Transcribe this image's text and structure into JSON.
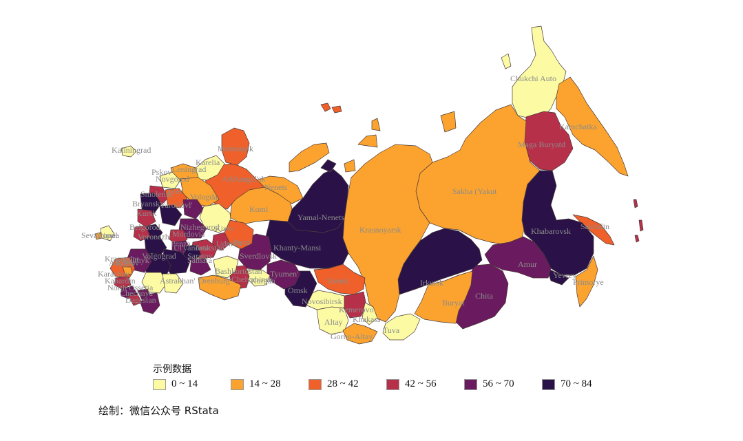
{
  "colors": {
    "c1": "#fcfba4",
    "c2": "#fba32e",
    "c3": "#f0602a",
    "c4": "#b7304a",
    "c5": "#6a1a5e",
    "c6": "#2a1248"
  },
  "legend": {
    "title": "示例数据",
    "items": [
      {
        "label": "0 ~ 14",
        "color": "#fcfba4"
      },
      {
        "label": "14 ~ 28",
        "color": "#fba32e"
      },
      {
        "label": "28 ~ 42",
        "color": "#f0602a"
      },
      {
        "label": "42 ~ 56",
        "color": "#b7304a"
      },
      {
        "label": "56 ~ 70",
        "color": "#6a1a5e"
      },
      {
        "label": "70 ~ 84",
        "color": "#2a1248"
      }
    ]
  },
  "caption": "绘制：微信公众号 RStata",
  "region_labels": [
    "Chukchi Auto",
    "Kamchatka",
    "Maga Buryatd",
    "Sakha (Yakut",
    "Sakhalin",
    "Khabarovsk",
    "Amur",
    "Yevrey",
    "Primorye",
    "Chita",
    "Buryat",
    "Irkutsk",
    "Tuva",
    "Krasnoyarsk",
    "Yamal-Nenets",
    "Khanty-Mansi",
    "Tomsk",
    "Kemerovo",
    "Khakass",
    "Gorno-Altay",
    "Altay",
    "Novosibirsk",
    "Omsk",
    "Tyumen'",
    "Sverdlovsk",
    "Kurgan",
    "Chelyabinsk",
    "Bashkortostan",
    "Orenburg",
    "Komi",
    "Nenets",
    "Arkhangel'sk",
    "Murmansk",
    "Karelia",
    "Leningrad",
    "Kaliningrad",
    "Novgorod",
    "Pskov",
    "Vologda",
    "Tver",
    "Smolensk",
    "Bryansk",
    "Kirov",
    "Perm'",
    "Udmurt",
    "Tatarstan",
    "Samara",
    "Saratov",
    "Volgograd",
    "Voronezh",
    "Belgorod",
    "Kursk",
    "Ul'yanovsk",
    "Penza",
    "Astrakhan'",
    "Kalmyk",
    "Rostov",
    "Krasnodar",
    "Adygey",
    "Karachay",
    "Kabardin",
    "North Ossetia",
    "Chechnya",
    "Dagestan",
    "Sevastopol",
    "Crimea",
    "Yaroslavl'",
    "Nizhegorod",
    "Mordovia"
  ]
}
